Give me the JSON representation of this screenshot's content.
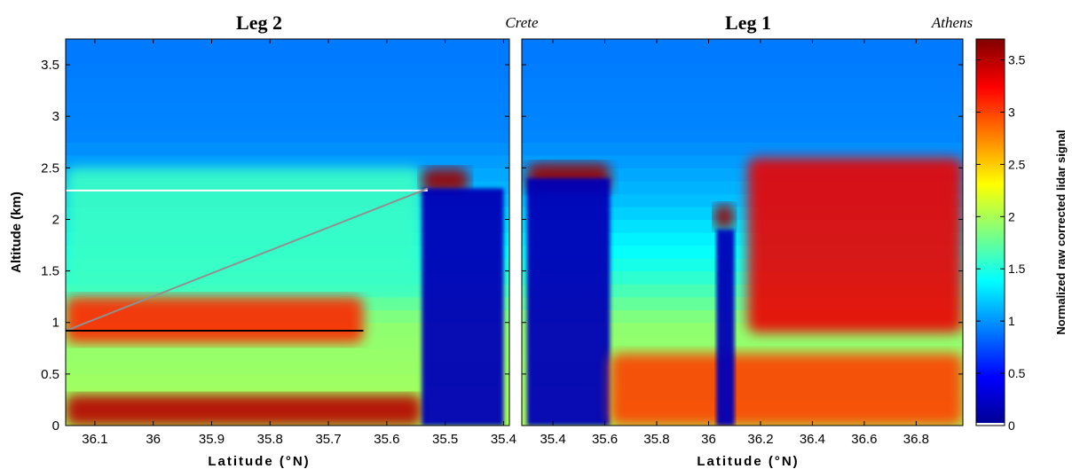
{
  "chart_data": [
    {
      "type": "heatmap",
      "title": "Leg 2",
      "corner_label": "Crete",
      "xlabel": "Latitude (°N)",
      "ylabel": "Altitude (km)",
      "x_direction": "decreasing",
      "xlim": [
        36.15,
        35.39
      ],
      "ylim": [
        0,
        3.75
      ],
      "xticks": [
        36.1,
        36,
        35.9,
        35.8,
        35.7,
        35.6,
        35.5,
        35.4
      ],
      "xtick_labels": [
        "36.1",
        "36",
        "35.9",
        "35.8",
        "35.7",
        "35.6",
        "35.5",
        "35.4"
      ],
      "yticks": [
        0,
        0.5,
        1,
        1.5,
        2,
        2.5,
        3,
        3.5
      ],
      "ytick_labels": [
        "0",
        "0.5",
        "1",
        "1.5",
        "2",
        "2.5",
        "3",
        "3.5"
      ],
      "layers": [
        {
          "kind": "aerosol-upper",
          "x_from": 36.15,
          "x_to": 35.54,
          "bottom": 1.3,
          "top": 2.5,
          "level": 1.6
        },
        {
          "kind": "aerosol-dense",
          "x_from": 36.15,
          "x_to": 35.64,
          "bottom": 0.8,
          "top": 1.25,
          "level": 3.1
        },
        {
          "kind": "aerosol-near-surface",
          "x_from": 36.15,
          "x_to": 35.54,
          "bottom": 0.0,
          "top": 0.3,
          "level": 3.5
        },
        {
          "kind": "cloud-top",
          "x_from": 35.54,
          "x_to": 35.46,
          "bottom": 2.25,
          "top": 2.5,
          "level": 3.6
        },
        {
          "kind": "attenuated-below-cloud",
          "x_from": 35.54,
          "x_to": 35.4,
          "bottom": 0.0,
          "top": 2.3,
          "level": 0.2
        }
      ],
      "reference_lines": [
        {
          "color": "#ffffff",
          "x_from": 36.15,
          "x_to": 35.53,
          "y_from": 2.28,
          "y_to": 2.28
        },
        {
          "color": "#909090",
          "x_from": 36.15,
          "x_to": 35.53,
          "y_from": 0.92,
          "y_to": 2.3
        },
        {
          "color": "#000000",
          "x_from": 36.15,
          "x_to": 35.64,
          "y_from": 0.92,
          "y_to": 0.92
        }
      ]
    },
    {
      "type": "heatmap",
      "title": "Leg 1",
      "corner_label": "Athens",
      "xlabel": "Latitude (°N)",
      "ylabel": "",
      "x_direction": "increasing",
      "xlim": [
        35.28,
        36.98
      ],
      "ylim": [
        0,
        3.75
      ],
      "xticks": [
        35.4,
        35.6,
        35.8,
        36,
        36.2,
        36.4,
        36.6,
        36.8
      ],
      "xtick_labels": [
        "35.4",
        "35.6",
        "35.8",
        "36",
        "36.2",
        "36.4",
        "36.6",
        "36.8"
      ],
      "yticks": [
        0,
        0.5,
        1,
        1.5,
        2,
        2.5,
        3,
        3.5
      ],
      "layers": [
        {
          "kind": "cloud-tops",
          "x_from": 35.3,
          "x_to": 35.62,
          "bottom": 2.25,
          "top": 2.55,
          "level": 3.6
        },
        {
          "kind": "attenuated-below-cloud",
          "x_from": 35.3,
          "x_to": 35.62,
          "bottom": 0.0,
          "top": 2.4,
          "level": 0.2
        },
        {
          "kind": "aerosol-dense",
          "x_from": 36.15,
          "x_to": 36.98,
          "bottom": 0.9,
          "top": 2.6,
          "level": 3.3
        },
        {
          "kind": "aerosol-near-surface",
          "x_from": 35.62,
          "x_to": 36.98,
          "bottom": 0.0,
          "top": 0.7,
          "level": 3.0
        },
        {
          "kind": "cloud-top",
          "x_from": 36.02,
          "x_to": 36.1,
          "bottom": 1.9,
          "top": 2.15,
          "level": 3.6
        },
        {
          "kind": "attenuated-below-cloud",
          "x_from": 36.03,
          "x_to": 36.1,
          "bottom": 0.0,
          "top": 1.9,
          "level": 0.2
        }
      ]
    }
  ],
  "colorbar": {
    "label": "Normalized raw corrected lidar signal",
    "range": [
      0,
      3.7
    ],
    "ticks": [
      0,
      0.5,
      1,
      1.5,
      2,
      2.5,
      3,
      3.5
    ],
    "tick_labels": [
      "0",
      "0.5",
      "1",
      "1.5",
      "2",
      "2.5",
      "3",
      "3.5"
    ],
    "colormap": "jet"
  }
}
